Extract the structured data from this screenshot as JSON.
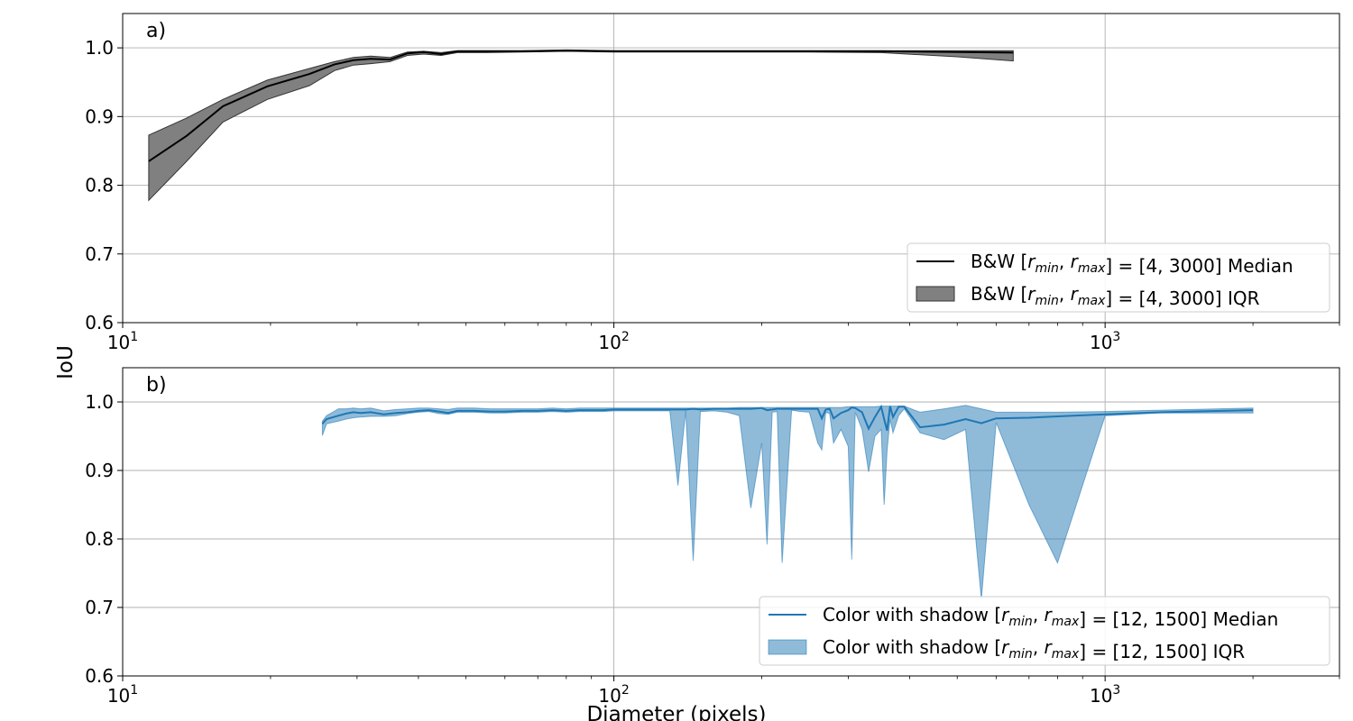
{
  "figure": {
    "ylabel": "IoU",
    "xlabel": "Diameter (pixels)"
  },
  "chart_data": [
    {
      "type": "area",
      "panel_label": "a)",
      "xscale": "log",
      "xlim": [
        10,
        3000
      ],
      "ylim": [
        0.6,
        1.05
      ],
      "yticks": [
        0.6,
        0.7,
        0.8,
        0.9,
        1.0
      ],
      "ytick_labels": [
        "0.6",
        "0.7",
        "0.8",
        "0.9",
        "1.0"
      ],
      "xtick_labels": [
        {
          "base": "10",
          "exp": "1"
        },
        {
          "base": "10",
          "exp": "2"
        },
        {
          "base": "10",
          "exp": "3"
        }
      ],
      "grid": true,
      "legend_position": "lower-right",
      "colors": {
        "median": "#000000",
        "iqr": "#808080"
      },
      "legend": [
        {
          "kind": "line",
          "pre": "B&W [",
          "math": "r_min, r_max",
          "post": "] = [4, 3000] Median"
        },
        {
          "kind": "patch",
          "pre": "B&W [",
          "math": "r_min, r_max",
          "post": "] = [4, 3000] IQR"
        }
      ],
      "series": [
        {
          "role": "median",
          "x": [
            11.3,
            13.5,
            16,
            19.7,
            24,
            27,
            29.5,
            32,
            35,
            38,
            41,
            44.5,
            48,
            55,
            65,
            80,
            100,
            150,
            250,
            350,
            500,
            650
          ],
          "y": [
            0.835,
            0.872,
            0.915,
            0.944,
            0.962,
            0.976,
            0.982,
            0.984,
            0.983,
            0.992,
            0.994,
            0.991,
            0.995,
            0.995,
            0.995,
            0.996,
            0.995,
            0.995,
            0.995,
            0.995,
            0.994,
            0.993
          ]
        },
        {
          "role": "iqr",
          "x": [
            11.3,
            13.5,
            16,
            19.7,
            24,
            27,
            29.5,
            32,
            35,
            38,
            41,
            44.5,
            48,
            55,
            65,
            80,
            100,
            150,
            250,
            350,
            500,
            650
          ],
          "y_low": [
            0.778,
            0.835,
            0.892,
            0.925,
            0.945,
            0.967,
            0.975,
            0.977,
            0.98,
            0.989,
            0.991,
            0.989,
            0.993,
            0.993,
            0.994,
            0.995,
            0.994,
            0.994,
            0.994,
            0.993,
            0.987,
            0.981
          ],
          "y_high": [
            0.873,
            0.898,
            0.925,
            0.953,
            0.97,
            0.98,
            0.986,
            0.988,
            0.986,
            0.994,
            0.995,
            0.993,
            0.996,
            0.996,
            0.996,
            0.997,
            0.996,
            0.996,
            0.996,
            0.996,
            0.996,
            0.996
          ]
        }
      ]
    },
    {
      "type": "area",
      "panel_label": "b)",
      "xscale": "log",
      "xlim": [
        10,
        3000
      ],
      "ylim": [
        0.6,
        1.05
      ],
      "yticks": [
        0.6,
        0.7,
        0.8,
        0.9,
        1.0
      ],
      "ytick_labels": [
        "0.6",
        "0.7",
        "0.8",
        "0.9",
        "1.0"
      ],
      "xtick_labels": [
        {
          "base": "10",
          "exp": "1"
        },
        {
          "base": "10",
          "exp": "2"
        },
        {
          "base": "10",
          "exp": "3"
        }
      ],
      "grid": true,
      "legend_position": "lower-right",
      "colors": {
        "median": "#1f77b4",
        "iqr": "#1f77b4"
      },
      "legend": [
        {
          "kind": "line",
          "pre": "Color with shadow [",
          "math": "r_min, r_max",
          "post": "] = [12, 1500] Median"
        },
        {
          "kind": "patch",
          "pre": "Color with shadow [",
          "math": "r_min, r_max",
          "post": "] = [12, 1500] IQR"
        }
      ],
      "series": [
        {
          "role": "median",
          "x": [
            25.5,
            26,
            27.5,
            28.5,
            29.5,
            30.5,
            32,
            34,
            36,
            38,
            40,
            42,
            44,
            46,
            48,
            52,
            56,
            60,
            65,
            70,
            75,
            80,
            85,
            90,
            95,
            100,
            110,
            120,
            130,
            135,
            140,
            145,
            150,
            160,
            170,
            180,
            190,
            200,
            205,
            210,
            215,
            220,
            230,
            240,
            250,
            260,
            265,
            270,
            275,
            280,
            290,
            300,
            305,
            310,
            320,
            330,
            340,
            350,
            355,
            360,
            365,
            370,
            380,
            390,
            420,
            470,
            520,
            560,
            600,
            700,
            800,
            1000,
            1300,
            2000
          ],
          "y": [
            0.968,
            0.975,
            0.98,
            0.983,
            0.985,
            0.984,
            0.985,
            0.982,
            0.984,
            0.985,
            0.987,
            0.988,
            0.986,
            0.984,
            0.987,
            0.987,
            0.986,
            0.986,
            0.987,
            0.987,
            0.988,
            0.987,
            0.988,
            0.988,
            0.988,
            0.989,
            0.989,
            0.989,
            0.989,
            0.989,
            0.989,
            0.99,
            0.989,
            0.99,
            0.99,
            0.99,
            0.99,
            0.991,
            0.988,
            0.989,
            0.99,
            0.99,
            0.99,
            0.99,
            0.99,
            0.99,
            0.976,
            0.989,
            0.99,
            0.976,
            0.984,
            0.988,
            0.992,
            0.991,
            0.985,
            0.961,
            0.978,
            0.993,
            0.975,
            0.958,
            0.994,
            0.978,
            0.993,
            0.993,
            0.963,
            0.967,
            0.975,
            0.969,
            0.976,
            0.977,
            0.979,
            0.982,
            0.985,
            0.988
          ]
        },
        {
          "role": "iqr",
          "x": [
            25.5,
            26,
            27.5,
            28.5,
            29.5,
            30.5,
            32,
            34,
            36,
            38,
            40,
            42,
            44,
            46,
            48,
            52,
            56,
            60,
            65,
            70,
            75,
            80,
            85,
            90,
            95,
            100,
            110,
            120,
            130,
            135,
            140,
            145,
            150,
            160,
            170,
            180,
            190,
            200,
            205,
            210,
            215,
            220,
            230,
            240,
            250,
            260,
            265,
            270,
            275,
            280,
            290,
            300,
            305,
            310,
            320,
            330,
            340,
            350,
            355,
            360,
            365,
            370,
            380,
            390,
            420,
            470,
            520,
            560,
            600,
            700,
            800,
            1000,
            1300,
            2000
          ],
          "y_low": [
            0.951,
            0.968,
            0.972,
            0.975,
            0.977,
            0.978,
            0.979,
            0.979,
            0.98,
            0.983,
            0.985,
            0.986,
            0.983,
            0.982,
            0.985,
            0.985,
            0.984,
            0.984,
            0.985,
            0.985,
            0.986,
            0.985,
            0.986,
            0.986,
            0.986,
            0.987,
            0.987,
            0.987,
            0.987,
            0.878,
            0.987,
            0.768,
            0.986,
            0.987,
            0.985,
            0.98,
            0.845,
            0.94,
            0.792,
            0.985,
            0.986,
            0.765,
            0.988,
            0.986,
            0.985,
            0.94,
            0.93,
            0.985,
            0.983,
            0.94,
            0.96,
            0.935,
            0.77,
            0.985,
            0.96,
            0.898,
            0.95,
            0.96,
            0.85,
            0.93,
            0.975,
            0.955,
            0.98,
            0.99,
            0.955,
            0.945,
            0.96,
            0.712,
            0.97,
            0.85,
            0.765,
            0.98,
            0.984,
            0.984
          ],
          "y_high": [
            0.972,
            0.98,
            0.99,
            0.99,
            0.991,
            0.99,
            0.991,
            0.987,
            0.989,
            0.99,
            0.991,
            0.991,
            0.99,
            0.989,
            0.991,
            0.991,
            0.99,
            0.99,
            0.99,
            0.99,
            0.991,
            0.99,
            0.991,
            0.991,
            0.991,
            0.991,
            0.991,
            0.991,
            0.991,
            0.991,
            0.991,
            0.991,
            0.991,
            0.991,
            0.991,
            0.992,
            0.992,
            0.992,
            0.992,
            0.992,
            0.992,
            0.992,
            0.992,
            0.992,
            0.992,
            0.992,
            0.992,
            0.992,
            0.992,
            0.992,
            0.992,
            0.993,
            0.993,
            0.993,
            0.993,
            0.993,
            0.993,
            0.994,
            0.994,
            0.994,
            0.994,
            0.994,
            0.994,
            0.994,
            0.985,
            0.99,
            0.995,
            0.99,
            0.985,
            0.985,
            0.985,
            0.986,
            0.988,
            0.991
          ]
        }
      ]
    }
  ]
}
